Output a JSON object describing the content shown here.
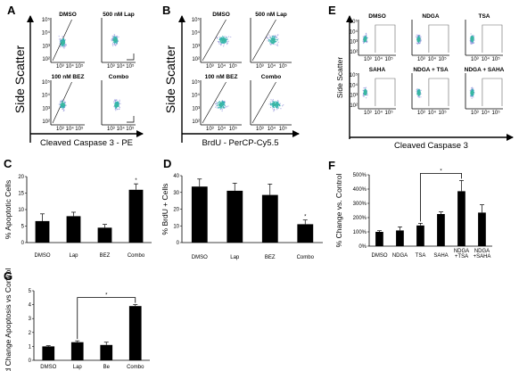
{
  "panels": {
    "A": {
      "label": "A",
      "ylabel": "Side Scatter",
      "xlabel": "Cleaved Caspase 3 - PE",
      "subplots": [
        "DMSO",
        "500 nM Lap",
        "100 nM BEZ",
        "Combo"
      ]
    },
    "B": {
      "label": "B",
      "ylabel": "Side Scatter",
      "xlabel": "BrdU - PerCP-Cy5.5",
      "subplots": [
        "DMSO",
        "500 nM Lap",
        "100 nM BEZ",
        "Combo"
      ]
    },
    "E": {
      "label": "E",
      "ylabel": "Side Scatter",
      "xlabel": "Cleaved Caspase 3",
      "subplots": [
        "DMSO",
        "NDGA",
        "TSA",
        "SAHA",
        "NDGA + TSA",
        "NDGA + SAHA"
      ]
    },
    "C": {
      "label": "C"
    },
    "D": {
      "label": "D"
    },
    "F": {
      "label": "F"
    },
    "G": {
      "label": "G"
    }
  },
  "flow_axis": {
    "y_ticks": [
      "10⁵",
      "10⁴",
      "10³",
      "10²"
    ],
    "x_ticks": [
      "10³",
      "10⁴",
      "10⁵"
    ]
  },
  "colors": {
    "bar": "#000000",
    "axis": "#000000",
    "density_low": "#8a8ad8",
    "density_high": "#2fb0b0"
  },
  "chart_data": [
    {
      "id": "C",
      "type": "bar",
      "ylabel": "% Apoptotic Cells",
      "categories": [
        "DMSO",
        "Lap",
        "BEZ",
        "Combo"
      ],
      "values": [
        6.5,
        8,
        4.5,
        16
      ],
      "errors": [
        2.2,
        1.2,
        1.0,
        1.8
      ],
      "ylim": [
        0,
        20
      ],
      "yticks": [
        0,
        5,
        10,
        15,
        20
      ],
      "annotation": "*",
      "annot_index": 3
    },
    {
      "id": "D",
      "type": "bar",
      "ylabel": "% BrdU + Cells",
      "categories": [
        "DMSO",
        "Lap",
        "BEZ",
        "Combo"
      ],
      "values": [
        33.5,
        31,
        28.5,
        11
      ],
      "errors": [
        4.5,
        4.5,
        6.5,
        2.5
      ],
      "ylim": [
        0,
        40
      ],
      "yticks": [
        0,
        10,
        20,
        30,
        40
      ],
      "annotation": "*",
      "annot_index": 3
    },
    {
      "id": "F",
      "type": "bar",
      "ylabel": "% Change vs. Control",
      "categories": [
        "DMSO",
        "NDGA",
        "TSA",
        "SAHA",
        "NDGA +TSA",
        "NDGA +SAHA"
      ],
      "values": [
        100,
        110,
        145,
        225,
        385,
        235
      ],
      "errors": [
        8,
        25,
        15,
        15,
        75,
        55
      ],
      "ylim": [
        0,
        500
      ],
      "yticks": [
        "0%",
        "100%",
        "200%",
        "300%",
        "400%",
        "500%"
      ],
      "annotation": "*",
      "bracket": [
        2,
        4
      ]
    },
    {
      "id": "G",
      "type": "bar",
      "ylabel": "Fold Change Apoptosis vs Control",
      "categories": [
        "DMSO",
        "Lap",
        "Be",
        "Combo"
      ],
      "values": [
        1.0,
        1.3,
        1.1,
        3.9
      ],
      "errors": [
        0.05,
        0.1,
        0.2,
        0.1
      ],
      "ylim": [
        0,
        5
      ],
      "yticks": [
        0,
        1,
        2,
        3,
        4,
        5
      ],
      "annotation": "*",
      "bracket": [
        1,
        3
      ]
    }
  ]
}
